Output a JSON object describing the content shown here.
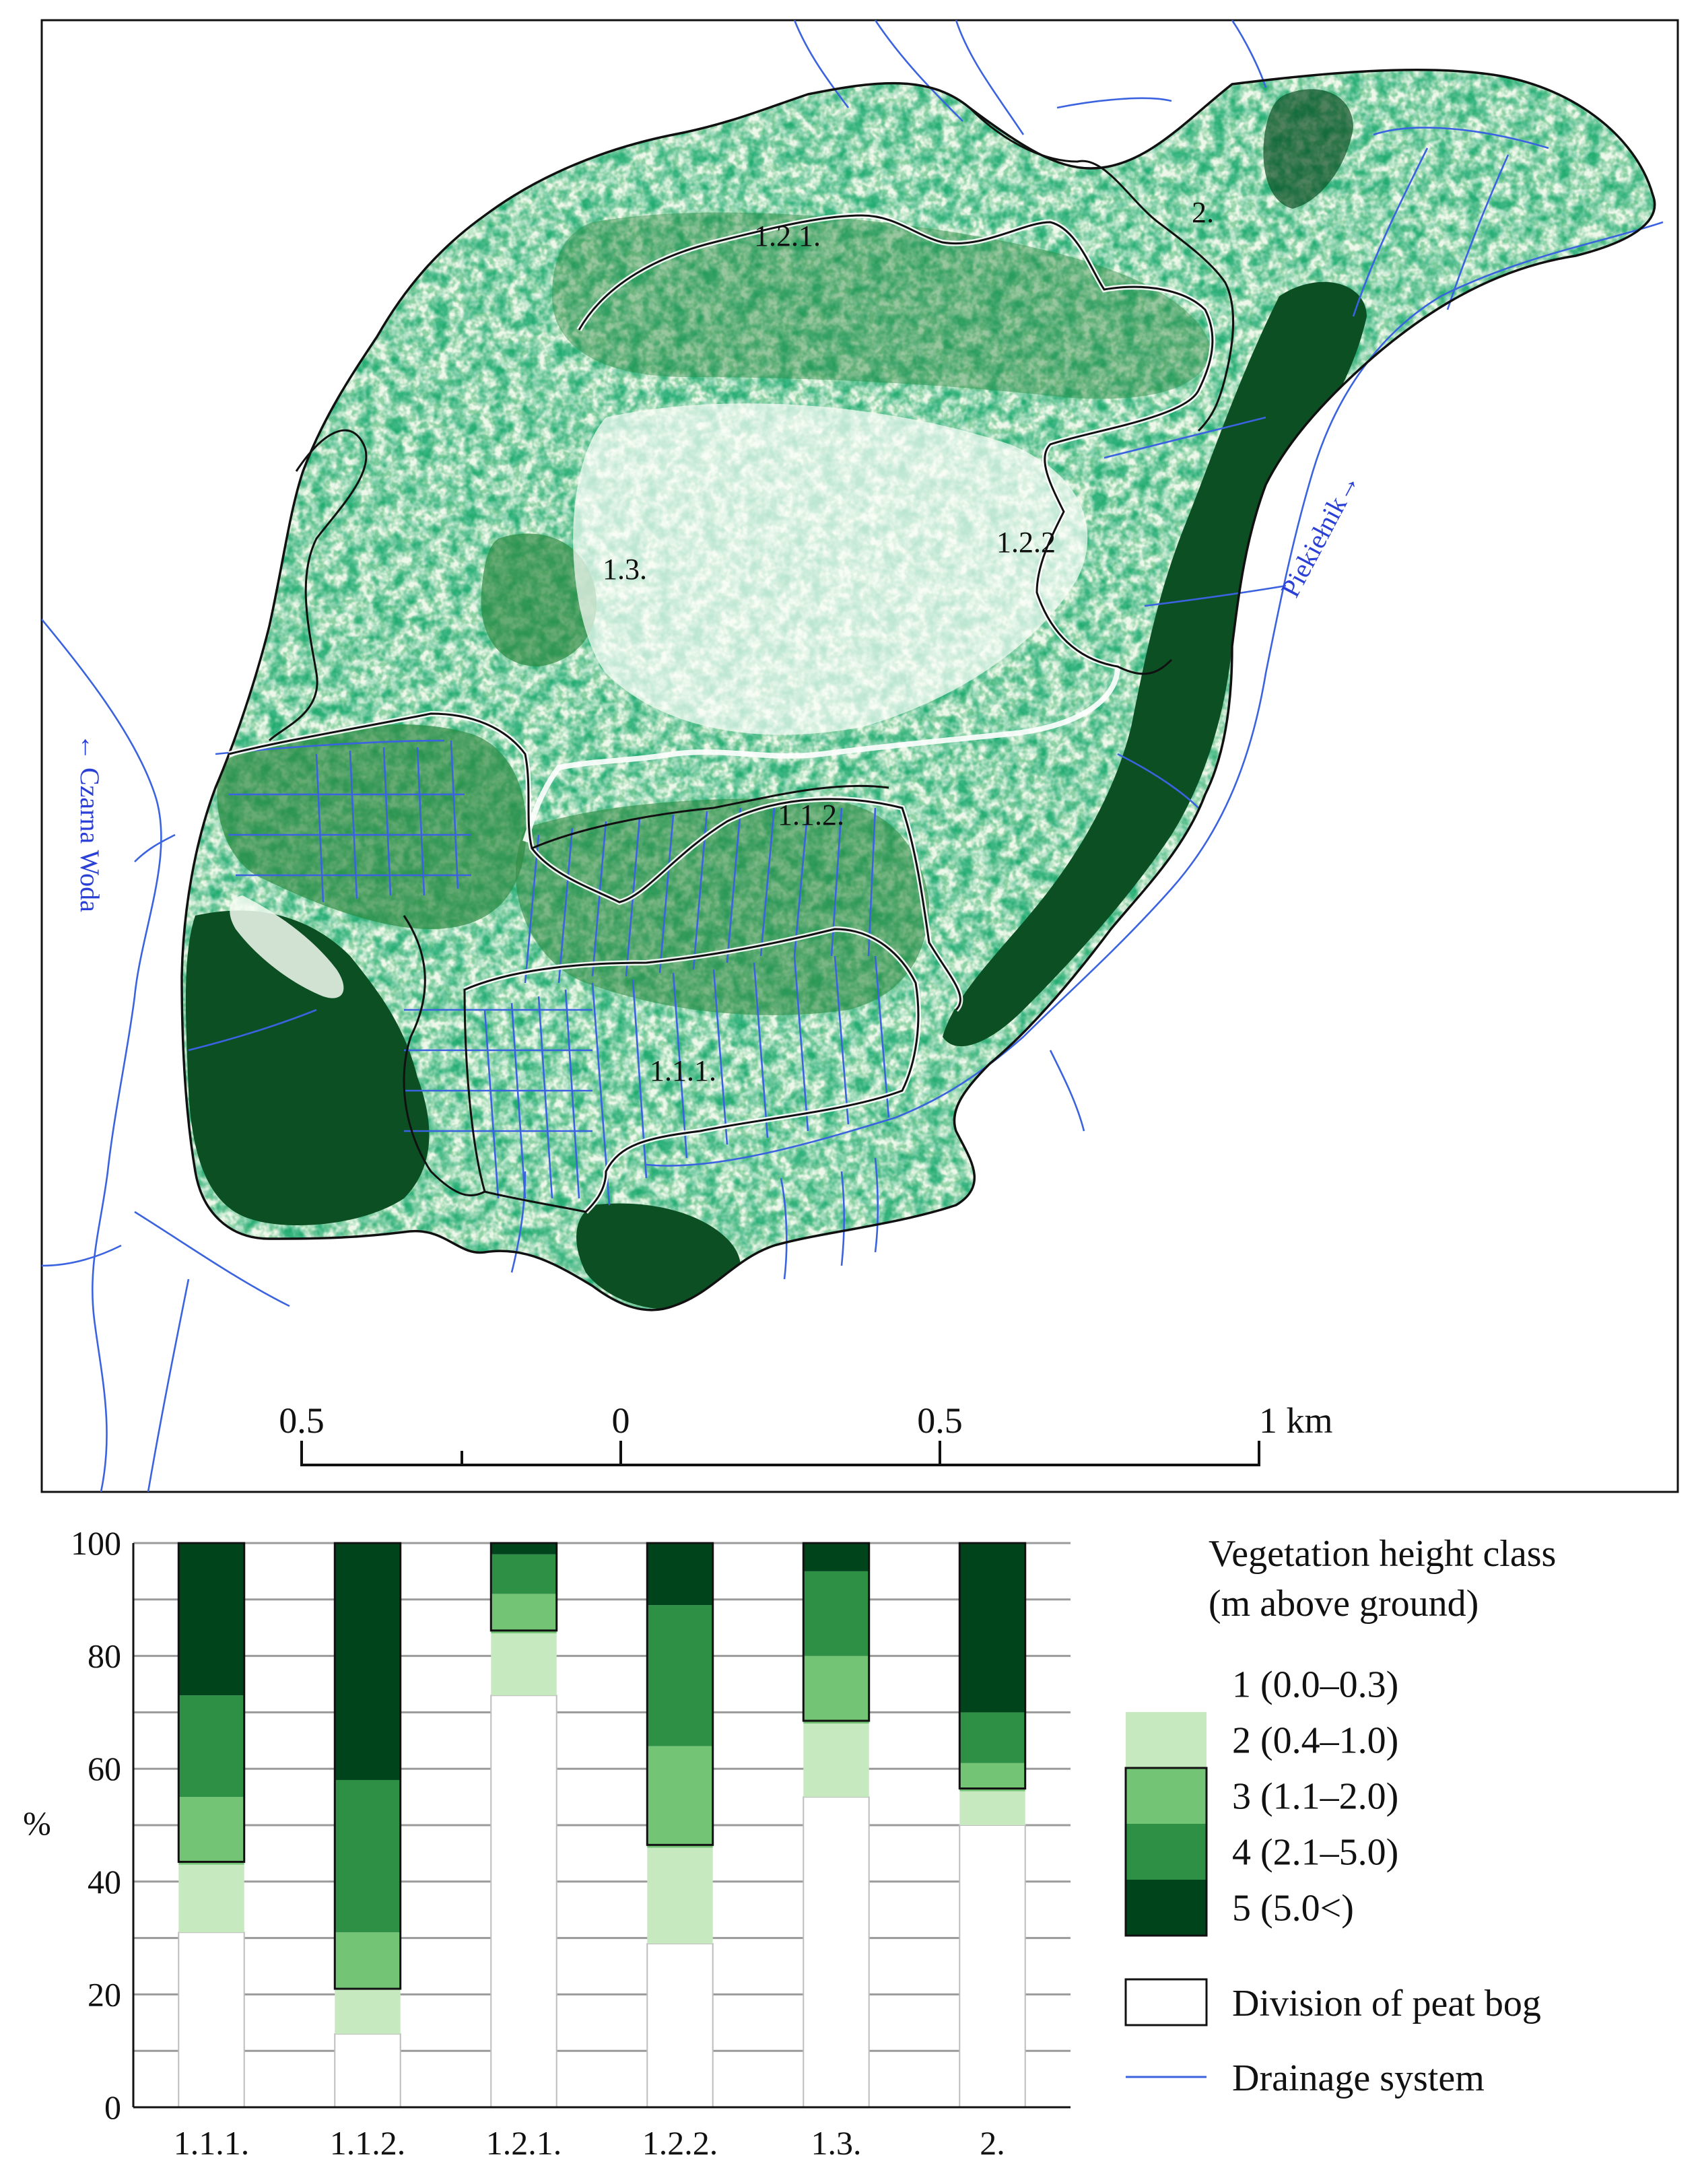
{
  "map": {
    "zone_labels": {
      "z111": "1.1.1.",
      "z112": "1.1.2.",
      "z121": "1.2.1.",
      "z122": "1.2.2",
      "z13": "1.3.",
      "z2": "2."
    },
    "river_labels": {
      "left": "← Czarna Woda",
      "right": "Piekiełnik→"
    },
    "scale_bar": {
      "ticks": [
        "0.5",
        "0",
        "0.5",
        "1 km"
      ]
    },
    "colors": {
      "drainage": "#3b63e0",
      "river_label": "#2a3fd6",
      "class1": "#ffffff",
      "class2": "#c7e9c0",
      "class3": "#74c476",
      "class4": "#2e9045",
      "class5": "#00441b"
    }
  },
  "chart_data": {
    "type": "bar",
    "stacked": true,
    "categories": [
      "1.1.1.",
      "1.1.2.",
      "1.2.1.",
      "1.2.2.",
      "1.3.",
      "2."
    ],
    "series": [
      {
        "name": "1 (0.0–0.3)",
        "color": "#ffffff",
        "values": [
          31,
          13,
          73,
          29,
          55,
          50
        ]
      },
      {
        "name": "2 (0.4–1.0)",
        "color": "#c7e9c0",
        "values": [
          12,
          8,
          11,
          17,
          13,
          6
        ]
      },
      {
        "name": "3 (1.1–2.0)",
        "color": "#74c476",
        "values": [
          12,
          10,
          7,
          18,
          12,
          5
        ]
      },
      {
        "name": "4 (2.1–5.0)",
        "color": "#2e9045",
        "values": [
          18,
          27,
          7,
          25,
          15,
          9
        ]
      },
      {
        "name": "5 (5.0<)",
        "color": "#00441b",
        "values": [
          27,
          42,
          2,
          11,
          5,
          30
        ]
      }
    ],
    "division_line": [
      43.5,
      21,
      84.5,
      46.5,
      68.5,
      56.5
    ],
    "ylim": [
      0,
      100
    ],
    "yticks": [
      "0",
      "20",
      "40",
      "60",
      "80",
      "100"
    ],
    "ylabel": "%",
    "grid": true,
    "legend": {
      "title_line1": "Vegetation height class",
      "title_line2": "(m above ground)",
      "division": "Division of peat bog",
      "drainage": "Drainage system",
      "placement": "right"
    }
  }
}
